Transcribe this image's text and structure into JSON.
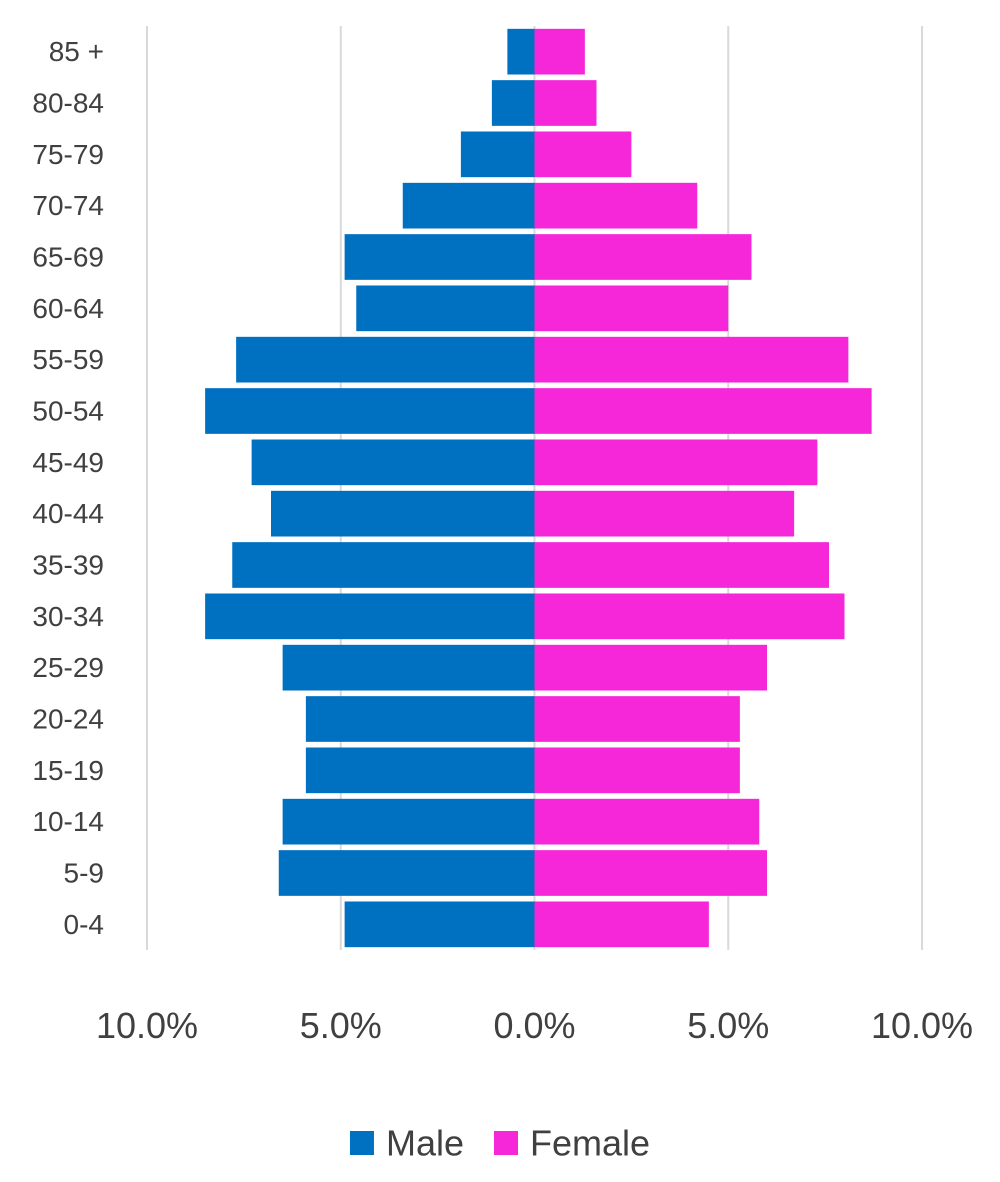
{
  "chart_data": {
    "type": "bar",
    "orientation": "horizontal",
    "layout": "population-pyramid",
    "categories": [
      "85 +",
      "80-84",
      "75-79",
      "70-74",
      "65-69",
      "60-64",
      "55-59",
      "50-54",
      "45-49",
      "40-44",
      "35-39",
      "30-34",
      "25-29",
      "20-24",
      "15-19",
      "10-14",
      "5-9",
      "0-4"
    ],
    "series": [
      {
        "name": "Male",
        "color": "#0070c0",
        "side": "left",
        "values": [
          0.7,
          1.1,
          1.9,
          3.4,
          4.9,
          4.6,
          7.7,
          8.5,
          7.3,
          6.8,
          7.8,
          8.5,
          6.5,
          5.9,
          5.9,
          6.5,
          6.6,
          4.9
        ]
      },
      {
        "name": "Female",
        "color": "#f527d9",
        "side": "right",
        "values": [
          1.3,
          1.6,
          2.5,
          4.2,
          5.6,
          5.0,
          8.1,
          8.7,
          7.3,
          6.7,
          7.6,
          8.0,
          6.0,
          5.3,
          5.3,
          5.8,
          6.0,
          4.5
        ]
      }
    ],
    "x_ticks": [
      {
        "value": -10,
        "label": "10.0%"
      },
      {
        "value": -5,
        "label": "5.0%"
      },
      {
        "value": 0,
        "label": "0.0%"
      },
      {
        "value": 5,
        "label": "5.0%"
      },
      {
        "value": 10,
        "label": "10.0%"
      }
    ],
    "xlim": [
      -10,
      10
    ],
    "grid": "vertical",
    "legend_position": "bottom",
    "title": "",
    "xlabel": "",
    "ylabel": ""
  }
}
